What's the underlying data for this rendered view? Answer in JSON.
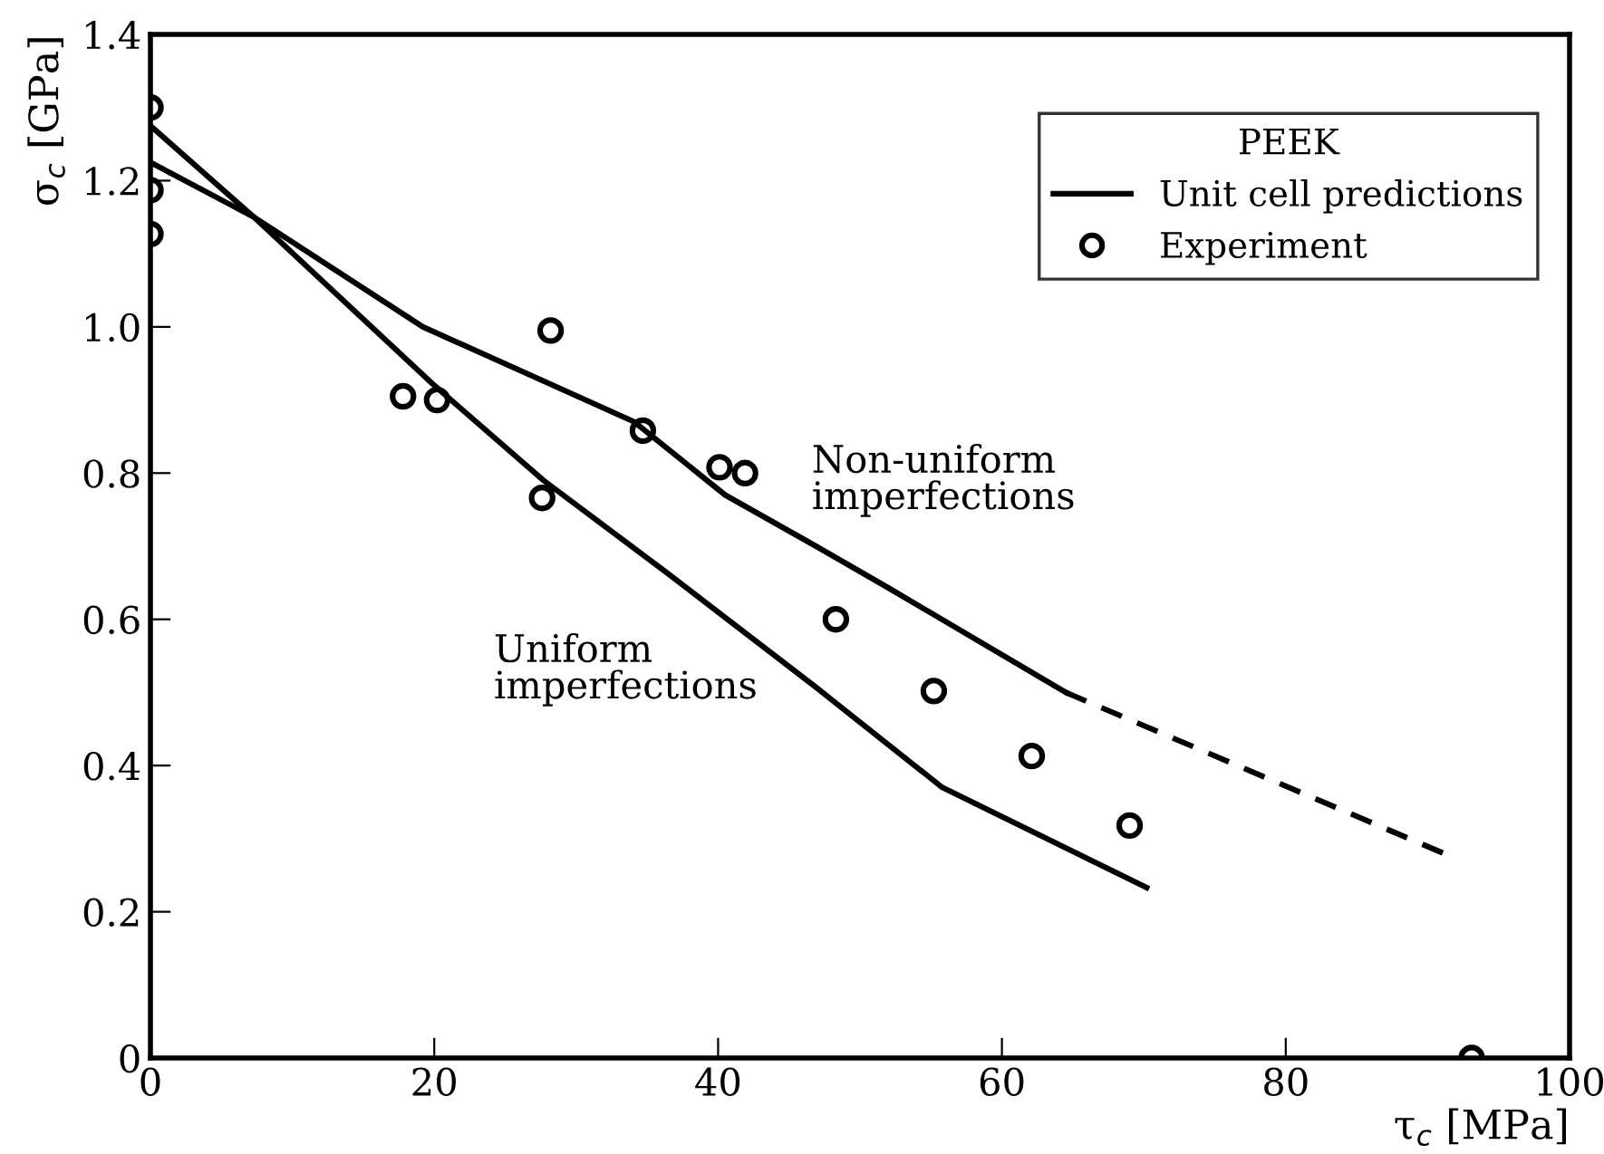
{
  "chart_data": {
    "type": "line",
    "xlabel": "τ$_{c}$ [MPa]",
    "ylabel": "σ$_{c}$ [GPa]",
    "legend_title": "PEEK",
    "legend": "top right",
    "grid": false,
    "xlim": [
      0,
      100
    ],
    "xticks": [
      0,
      20,
      40,
      60,
      80,
      100
    ],
    "ylim": [
      0,
      1.4
    ],
    "yticks": [
      0,
      0.2,
      0.4,
      0.6,
      0.8,
      {
        "value": 1,
        "label": "1.0"
      },
      1.2,
      1.4
    ],
    "series": [
      {
        "name": "Unit cell predictions",
        "color": "#000000",
        "line_style": "solid",
        "marker": "none",
        "x": [
          0,
          7.3,
          20,
          27.7,
          36.3,
          46.9,
          55.8,
          70.2
        ],
        "values": [
          1.275,
          1.15,
          0.92,
          0.79,
          0.665,
          0.507,
          0.37,
          0.233
        ]
      },
      {
        "color": "#000000",
        "line_style": "solid",
        "marker": "none",
        "x": [
          0,
          7.3,
          19.2,
          34.1,
          40.5,
          46.9,
          52,
          64.5
        ],
        "values": [
          1.225,
          1.15,
          1.0,
          0.87,
          0.77,
          0.7,
          0.643,
          0.5
        ]
      },
      {
        "color": "#000000",
        "line_style": "dashed",
        "marker": "none",
        "x": [
          64.5,
          91.6
        ],
        "values": [
          0.5,
          0.276
        ]
      },
      {
        "name": "Experiment",
        "type": "scatter",
        "color": "#000000",
        "marker": "circle",
        "x": [
          0,
          0,
          0,
          17.8,
          20.2,
          28.2,
          27.6,
          34.7,
          40.1,
          41.9,
          48.3,
          55.2,
          62.1,
          69.0,
          93.1
        ],
        "values": [
          1.3,
          1.187,
          1.127,
          0.905,
          0.9,
          0.995,
          0.766,
          0.858,
          0.808,
          0.8,
          0.6,
          0.502,
          0.413,
          0.318,
          0
        ]
      }
    ],
    "annotations": [
      "Non-uniform\nimperfections",
      "Uniform\nimperfections"
    ]
  }
}
